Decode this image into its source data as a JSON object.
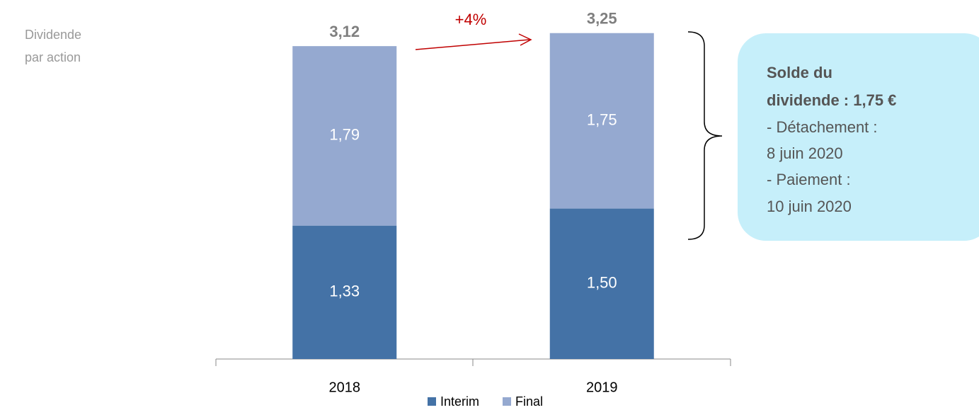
{
  "chart_data": {
    "type": "stacked_bar",
    "ylabel": [
      "Dividende",
      "par action"
    ],
    "categories": [
      "2018",
      "2019"
    ],
    "series": [
      {
        "name": "Interim",
        "color": "#4472a6",
        "values": [
          1.33,
          1.5
        ],
        "value_labels": [
          "1,33",
          "1,50"
        ]
      },
      {
        "name": "Final",
        "color": "#95a9d0",
        "values": [
          1.79,
          1.75
        ],
        "value_labels": [
          "1,79",
          "1,75"
        ]
      }
    ],
    "totals": [
      3.12,
      3.25
    ],
    "total_labels": [
      "3,12",
      "3,25"
    ],
    "ylim": [
      0,
      3.58
    ],
    "annotation": "+4%",
    "callout": {
      "title": [
        "Solde du",
        "dividende : 1,75 €"
      ],
      "lines": [
        "- Détachement :",
        "8 juin 2020",
        "- Paiement :",
        "10 juin 2020"
      ]
    }
  }
}
